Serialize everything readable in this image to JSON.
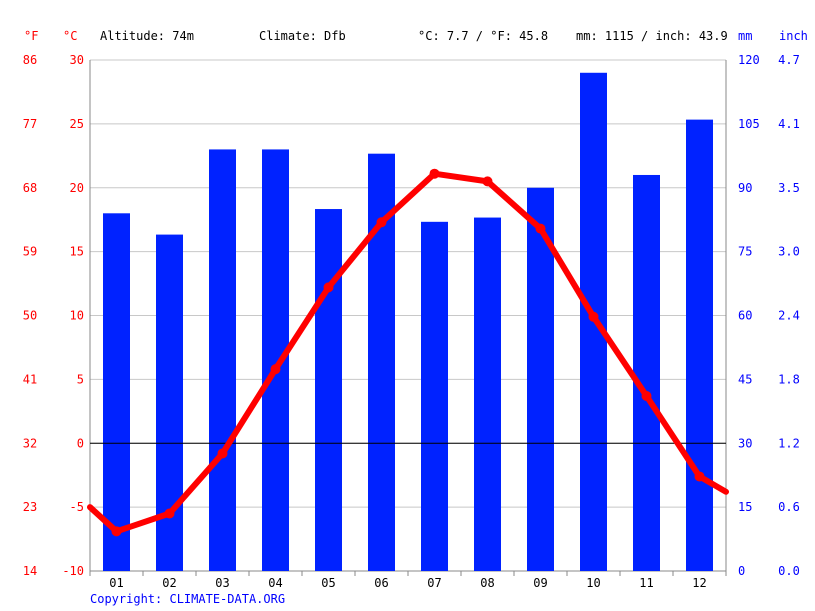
{
  "header": {
    "unit_f": "°F",
    "unit_c": "°C",
    "altitude": "Altitude: 74m",
    "climate": "Climate: Dfb",
    "temp_summary": "°C: 7.7 / °F: 45.8",
    "precip_summary": "mm: 1115 / inch: 43.9",
    "unit_mm": "mm",
    "unit_inch": "inch"
  },
  "copyright": "Copyright: CLIMATE-DATA.ORG",
  "colors": {
    "temperature": "#ff0000",
    "precipitation": "#0022ff",
    "grid": "#c8c8c8"
  },
  "chart_data": {
    "type": "bar",
    "categories": [
      "01",
      "02",
      "03",
      "04",
      "05",
      "06",
      "07",
      "08",
      "09",
      "10",
      "11",
      "12"
    ],
    "series": [
      {
        "type": "bar",
        "axis": "precipitation",
        "values": [
          84,
          79,
          99,
          99,
          85,
          98,
          82,
          83,
          90,
          117,
          93,
          106
        ]
      },
      {
        "type": "line",
        "axis": "temperature",
        "values": [
          -6.9,
          -5.5,
          -0.8,
          5.8,
          12.2,
          17.3,
          21.1,
          20.5,
          16.8,
          9.9,
          3.7,
          -2.6
        ],
        "edge_values": [
          -5.0,
          -3.8
        ]
      }
    ],
    "y_axis_left_c": {
      "ticks": [
        "30",
        "25",
        "20",
        "15",
        "10",
        "5",
        "0",
        "-5",
        "-10"
      ],
      "range": [
        -10,
        30
      ]
    },
    "y_axis_left_f": {
      "ticks": [
        "86",
        "77",
        "68",
        "59",
        "50",
        "41",
        "32",
        "23",
        "14"
      ]
    },
    "y_axis_right_mm": {
      "ticks": [
        "120",
        "105",
        "90",
        "75",
        "60",
        "45",
        "30",
        "15",
        "0"
      ],
      "range": [
        0,
        120
      ]
    },
    "y_axis_right_inch": {
      "ticks": [
        "4.7",
        "4.1",
        "3.5",
        "3.0",
        "2.4",
        "1.8",
        "1.2",
        "0.6",
        "0.0"
      ]
    },
    "grid": true
  }
}
